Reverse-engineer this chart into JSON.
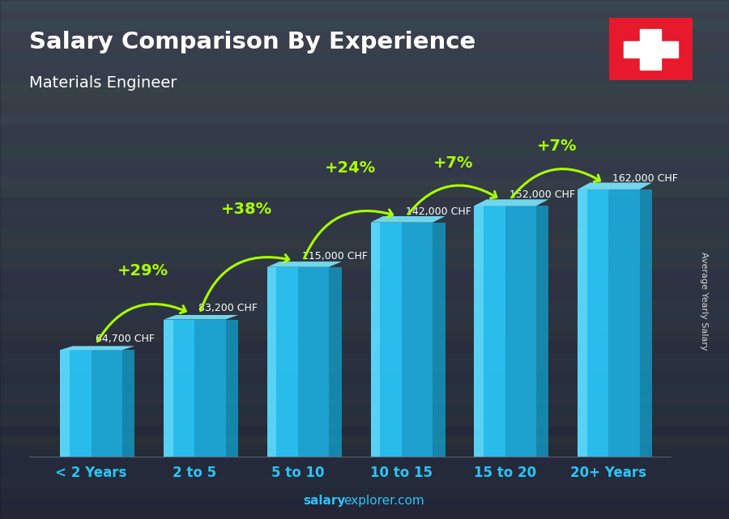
{
  "title": "Salary Comparison By Experience",
  "subtitle": "Materials Engineer",
  "categories": [
    "< 2 Years",
    "2 to 5",
    "5 to 10",
    "10 to 15",
    "15 to 20",
    "20+ Years"
  ],
  "values": [
    64700,
    83200,
    115000,
    142000,
    152000,
    162000
  ],
  "bar_color_face": "#29c5f6",
  "bar_color_left": "#5adcff",
  "bar_color_right": "#1490b8",
  "bar_color_top": "#7ae8ff",
  "salary_labels": [
    "64,700 CHF",
    "83,200 CHF",
    "115,000 CHF",
    "142,000 CHF",
    "152,000 CHF",
    "162,000 CHF"
  ],
  "pct_labels": [
    null,
    "+29%",
    "+38%",
    "+24%",
    "+7%",
    "+7%"
  ],
  "pct_label_color": "#aaff00",
  "salary_label_color": "#ffffff",
  "title_color": "#ffffff",
  "subtitle_color": "#ffffff",
  "xlabel_color": "#29c5f6",
  "bg_color_top": "#4a5a6a",
  "bg_color_bottom": "#1a2530",
  "ylabel_text": "Average Yearly Salary",
  "footer_salary": "salary",
  "footer_rest": "explorer.com",
  "ylim": [
    0,
    195000
  ],
  "bar_bottom": 0
}
